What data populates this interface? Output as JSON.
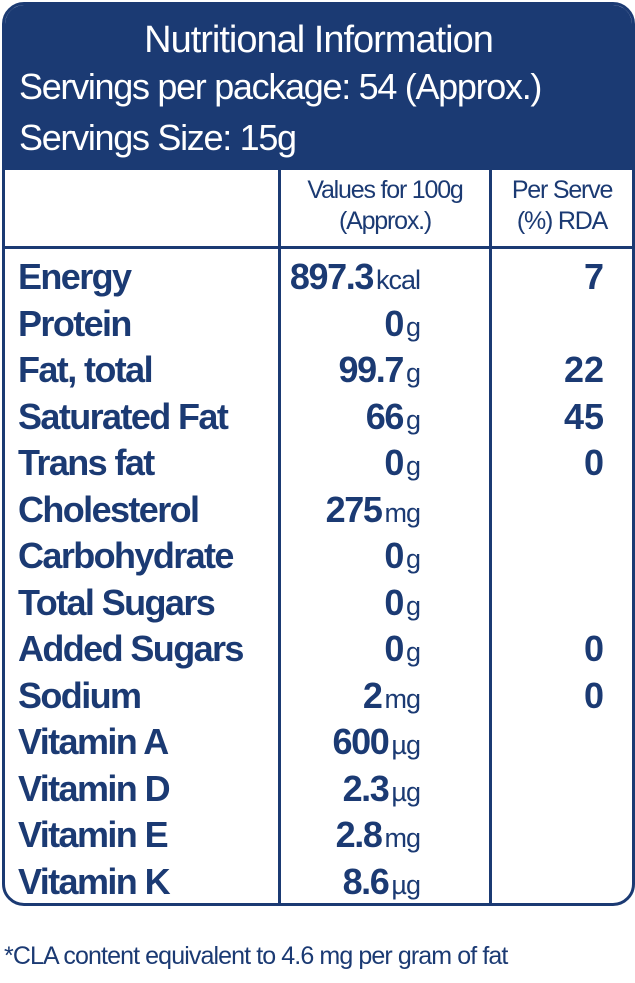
{
  "header": {
    "title": "Nutritional Information",
    "servings_per_package": "Servings per package: 54 (Approx.)",
    "serving_size": "Servings Size: 15g"
  },
  "columns": {
    "values": [
      "Values for 100g",
      "(Approx.)"
    ],
    "rda": [
      "Per Serve",
      "(%) RDA"
    ]
  },
  "rows": [
    {
      "name": "Energy",
      "value": "897.3",
      "unit": "kcal",
      "rda": "7"
    },
    {
      "name": "Protein",
      "value": "0",
      "unit": "g",
      "rda": ""
    },
    {
      "name": "Fat, total",
      "value": "99.7",
      "unit": "g",
      "rda": "22"
    },
    {
      "name": "Saturated Fat",
      "value": "66",
      "unit": "g",
      "rda": "45"
    },
    {
      "name": "Trans fat",
      "value": "0",
      "unit": "g",
      "rda": "0"
    },
    {
      "name": "Cholesterol",
      "value": "275",
      "unit": "mg",
      "rda": ""
    },
    {
      "name": "Carbohydrate",
      "value": "0",
      "unit": "g",
      "rda": ""
    },
    {
      "name": "Total Sugars",
      "value": "0",
      "unit": "g",
      "rda": ""
    },
    {
      "name": "Added Sugars",
      "value": "0",
      "unit": "g",
      "rda": "0"
    },
    {
      "name": "Sodium",
      "value": "2",
      "unit": "mg",
      "rda": "0"
    },
    {
      "name": "Vitamin A",
      "value": "600",
      "unit": "µg",
      "rda": ""
    },
    {
      "name": "Vitamin D",
      "value": "2.3",
      "unit": "µg",
      "rda": ""
    },
    {
      "name": "Vitamin E",
      "value": "2.8",
      "unit": "mg",
      "rda": ""
    },
    {
      "name": "Vitamin K",
      "value": "8.6",
      "unit": "µg",
      "rda": ""
    }
  ],
  "footnote": "*CLA content equivalent to 4.6 mg per gram of fat",
  "colors": {
    "primary": "#1b3a73",
    "background": "#ffffff"
  }
}
